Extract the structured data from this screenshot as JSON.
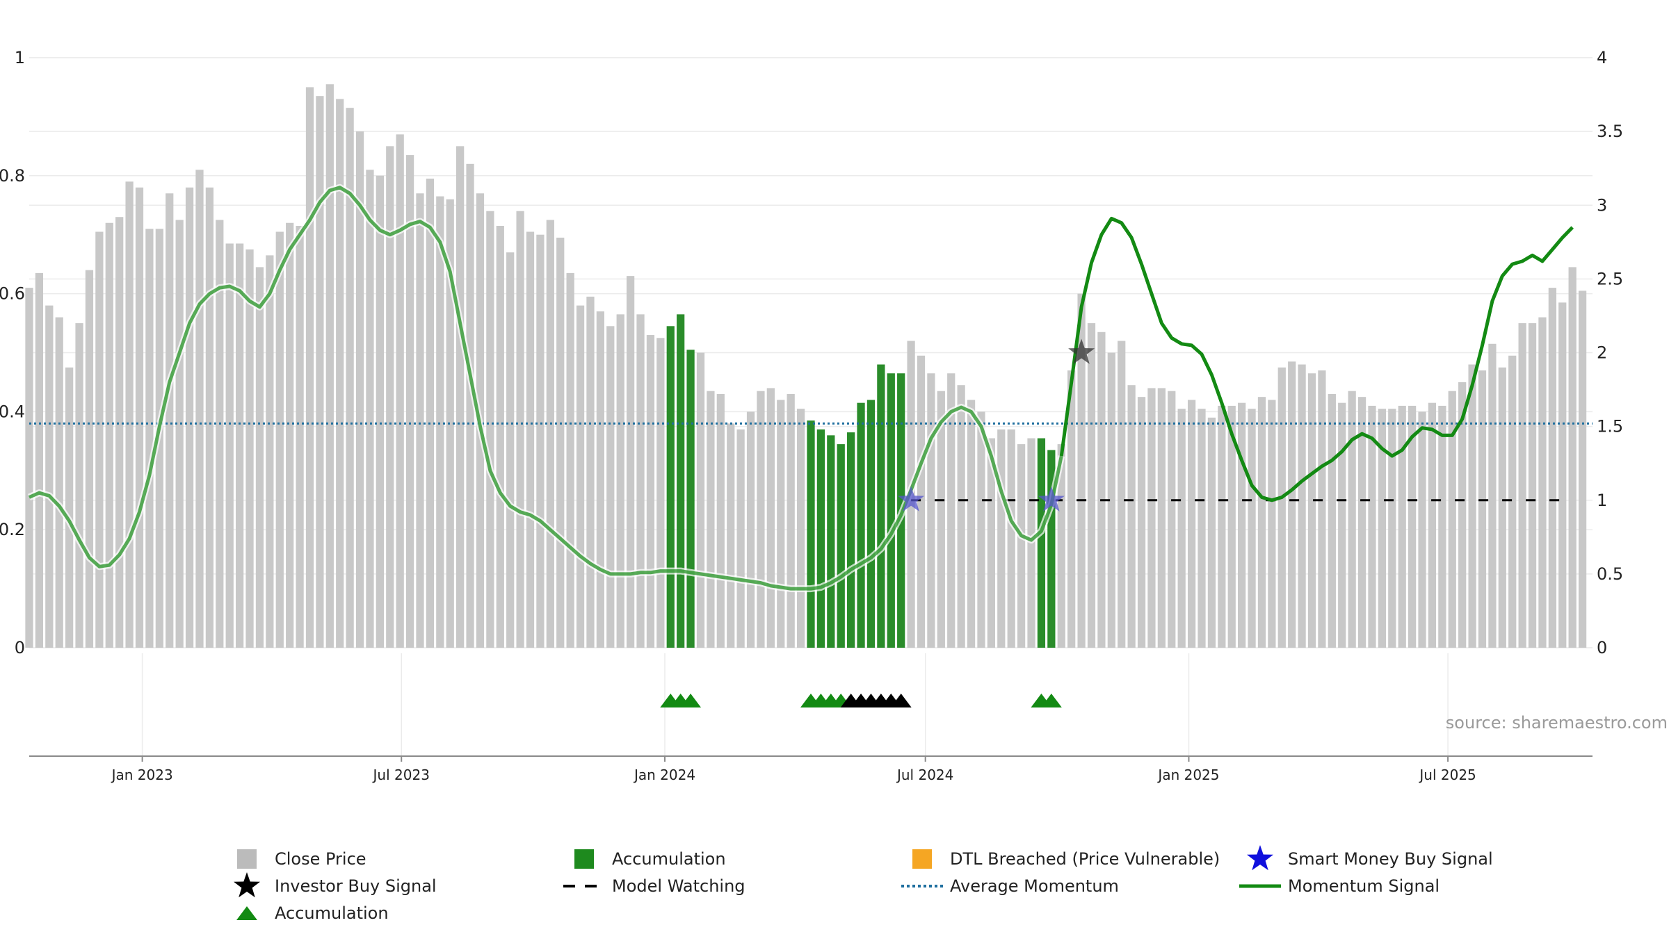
{
  "chart_data": {
    "type": "bar",
    "source_text": "source: sharemaestro.com",
    "x_axis": {
      "ticks": [
        {
          "date": "2023-01-01",
          "label": "Jan 2023"
        },
        {
          "date": "2023-07-01",
          "label": "Jul 2023"
        },
        {
          "date": "2024-01-01",
          "label": "Jan 2024"
        },
        {
          "date": "2024-07-01",
          "label": "Jul 2024"
        },
        {
          "date": "2025-01-01",
          "label": "Jan 2025"
        },
        {
          "date": "2025-07-01",
          "label": "Jul 2025"
        }
      ],
      "range": [
        "2022-10-14",
        "2025-10-10"
      ]
    },
    "y_left": {
      "range": [
        0,
        1
      ],
      "ticks": [
        0,
        0.2,
        0.4,
        0.6,
        0.8,
        1
      ],
      "tick_labels": [
        "0",
        "0.2",
        "0.4",
        "0.6",
        "0.8",
        "1"
      ]
    },
    "y_right": {
      "range": [
        0,
        4
      ],
      "ticks": [
        0,
        0.5,
        1,
        1.5,
        2,
        2.5,
        3,
        3.5,
        4
      ],
      "tick_labels": [
        "0",
        "0.5",
        "1",
        "1.5",
        "2",
        "2.5",
        "3",
        "3.5",
        "4"
      ]
    },
    "grid": true,
    "legend": {
      "placement": "bottom",
      "items": [
        {
          "label": "Close Price",
          "symbol": "square",
          "color": "#bbbbbb"
        },
        {
          "label": "Accumulation",
          "symbol": "square",
          "color": "#1e8a1e"
        },
        {
          "label": "DTL Breached (Price Vulnerable)",
          "symbol": "square",
          "color": "#f5a623"
        },
        {
          "label": "Smart Money Buy Signal",
          "symbol": "star",
          "color": "#1010dd"
        },
        {
          "label": "Investor Buy Signal",
          "symbol": "star",
          "color": "#000000"
        },
        {
          "label": "Model Watching",
          "symbol": "dash",
          "color": "#000000"
        },
        {
          "label": "Average Momentum",
          "symbol": "dotted",
          "color": "#1f6f9f"
        },
        {
          "label": "Momentum Signal",
          "symbol": "line",
          "color": "#138a13"
        },
        {
          "label": "Accumulation",
          "symbol": "triangle",
          "color": "#138a13"
        }
      ]
    },
    "colors": {
      "close_price": "#c8c8c8",
      "accumulation": "#2a8c2a",
      "momentum": "#138a13",
      "average_momentum": "#1f6f9f",
      "smart_money": "#5555cc",
      "investor": "#333333",
      "triangle_green": "#138a13",
      "triangle_black": "#000000"
    },
    "series": [
      {
        "name": "Close Price",
        "axis": "left",
        "start_date": "2022-10-14",
        "interval_days": 7,
        "values": [
          0.61,
          0.635,
          0.58,
          0.56,
          0.475,
          0.55,
          0.64,
          0.705,
          0.72,
          0.73,
          0.79,
          0.78,
          0.71,
          0.71,
          0.77,
          0.725,
          0.78,
          0.81,
          0.78,
          0.725,
          0.685,
          0.685,
          0.675,
          0.645,
          0.665,
          0.705,
          0.72,
          0.715,
          0.95,
          0.935,
          0.955,
          0.93,
          0.915,
          0.875,
          0.81,
          0.8,
          0.85,
          0.87,
          0.835,
          0.77,
          0.795,
          0.765,
          0.76,
          0.85,
          0.82,
          0.77,
          0.74,
          0.715,
          0.67,
          0.74,
          0.705,
          0.7,
          0.725,
          0.695,
          0.635,
          0.58,
          0.595,
          0.57,
          0.545,
          0.565,
          0.63,
          0.565,
          0.53,
          0.525,
          0.545,
          0.565,
          0.505,
          0.5,
          0.435,
          0.43,
          0.38,
          0.37,
          0.4,
          0.435,
          0.44,
          0.42,
          0.43,
          0.405,
          0.385,
          0.37,
          0.36,
          0.345,
          0.365,
          0.415,
          0.42,
          0.48,
          0.465,
          0.465,
          0.52,
          0.495,
          0.465,
          0.435,
          0.465,
          0.445,
          0.42,
          0.4,
          0.355,
          0.37,
          0.37,
          0.345,
          0.355,
          0.355,
          0.335,
          0.345,
          0.47,
          0.6,
          0.55,
          0.535,
          0.5,
          0.52,
          0.445,
          0.425,
          0.44,
          0.44,
          0.435,
          0.405,
          0.42,
          0.405,
          0.39,
          0.41,
          0.41,
          0.415,
          0.405,
          0.425,
          0.42,
          0.475,
          0.485,
          0.48,
          0.465,
          0.47,
          0.43,
          0.415,
          0.435,
          0.425,
          0.41,
          0.405,
          0.405,
          0.41,
          0.41,
          0.4,
          0.415,
          0.41,
          0.435,
          0.45,
          0.48,
          0.47,
          0.515,
          0.475,
          0.495,
          0.55,
          0.55,
          0.56,
          0.61,
          0.585,
          0.645,
          0.605
        ]
      },
      {
        "name": "Momentum Signal",
        "axis": "right",
        "points": [
          [
            "2022-10-14",
            1.02
          ],
          [
            "2022-10-21",
            1.05
          ],
          [
            "2022-10-28",
            1.03
          ],
          [
            "2022-11-04",
            0.96
          ],
          [
            "2022-11-11",
            0.86
          ],
          [
            "2022-11-18",
            0.73
          ],
          [
            "2022-11-25",
            0.61
          ],
          [
            "2022-12-02",
            0.55
          ],
          [
            "2022-12-09",
            0.56
          ],
          [
            "2022-12-16",
            0.63
          ],
          [
            "2022-12-23",
            0.74
          ],
          [
            "2022-12-30",
            0.92
          ],
          [
            "2023-01-06",
            1.17
          ],
          [
            "2023-01-13",
            1.5
          ],
          [
            "2023-01-20",
            1.8
          ],
          [
            "2023-01-27",
            2.0
          ],
          [
            "2023-02-03",
            2.2
          ],
          [
            "2023-02-10",
            2.33
          ],
          [
            "2023-02-17",
            2.4
          ],
          [
            "2023-02-24",
            2.44
          ],
          [
            "2023-03-03",
            2.45
          ],
          [
            "2023-03-10",
            2.42
          ],
          [
            "2023-03-17",
            2.35
          ],
          [
            "2023-03-24",
            2.31
          ],
          [
            "2023-03-31",
            2.4
          ],
          [
            "2023-04-07",
            2.56
          ],
          [
            "2023-04-14",
            2.7
          ],
          [
            "2023-04-21",
            2.8
          ],
          [
            "2023-04-28",
            2.9
          ],
          [
            "2023-05-05",
            3.02
          ],
          [
            "2023-05-12",
            3.1
          ],
          [
            "2023-05-19",
            3.12
          ],
          [
            "2023-05-26",
            3.08
          ],
          [
            "2023-06-02",
            3.0
          ],
          [
            "2023-06-09",
            2.9
          ],
          [
            "2023-06-16",
            2.83
          ],
          [
            "2023-06-23",
            2.8
          ],
          [
            "2023-06-30",
            2.83
          ],
          [
            "2023-07-07",
            2.87
          ],
          [
            "2023-07-14",
            2.89
          ],
          [
            "2023-07-21",
            2.85
          ],
          [
            "2023-07-28",
            2.75
          ],
          [
            "2023-08-04",
            2.55
          ],
          [
            "2023-08-11",
            2.2
          ],
          [
            "2023-08-18",
            1.85
          ],
          [
            "2023-08-25",
            1.5
          ],
          [
            "2023-09-01",
            1.2
          ],
          [
            "2023-09-08",
            1.05
          ],
          [
            "2023-09-15",
            0.96
          ],
          [
            "2023-09-22",
            0.92
          ],
          [
            "2023-09-29",
            0.9
          ],
          [
            "2023-10-06",
            0.86
          ],
          [
            "2023-10-13",
            0.8
          ],
          [
            "2023-10-20",
            0.74
          ],
          [
            "2023-10-27",
            0.68
          ],
          [
            "2023-11-03",
            0.62
          ],
          [
            "2023-11-10",
            0.57
          ],
          [
            "2023-11-17",
            0.53
          ],
          [
            "2023-11-24",
            0.5
          ],
          [
            "2023-12-01",
            0.5
          ],
          [
            "2023-12-08",
            0.5
          ],
          [
            "2023-12-15",
            0.51
          ],
          [
            "2023-12-22",
            0.51
          ],
          [
            "2023-12-29",
            0.52
          ],
          [
            "2024-01-05",
            0.52
          ],
          [
            "2024-01-12",
            0.52
          ],
          [
            "2024-01-19",
            0.51
          ],
          [
            "2024-01-26",
            0.5
          ],
          [
            "2024-02-02",
            0.49
          ],
          [
            "2024-02-09",
            0.48
          ],
          [
            "2024-02-16",
            0.47
          ],
          [
            "2024-02-23",
            0.46
          ],
          [
            "2024-03-01",
            0.45
          ],
          [
            "2024-03-08",
            0.44
          ],
          [
            "2024-03-15",
            0.42
          ],
          [
            "2024-03-22",
            0.41
          ],
          [
            "2024-03-29",
            0.4
          ],
          [
            "2024-04-05",
            0.4
          ],
          [
            "2024-04-12",
            0.4
          ],
          [
            "2024-04-19",
            0.41
          ],
          [
            "2024-04-26",
            0.44
          ],
          [
            "2024-05-03",
            0.48
          ],
          [
            "2024-05-10",
            0.53
          ],
          [
            "2024-05-17",
            0.57
          ],
          [
            "2024-05-24",
            0.61
          ],
          [
            "2024-05-31",
            0.67
          ],
          [
            "2024-06-07",
            0.77
          ],
          [
            "2024-06-14",
            0.9
          ],
          [
            "2024-06-21",
            1.07
          ],
          [
            "2024-06-28",
            1.25
          ],
          [
            "2024-07-05",
            1.42
          ],
          [
            "2024-07-12",
            1.53
          ],
          [
            "2024-07-19",
            1.6
          ],
          [
            "2024-07-26",
            1.63
          ],
          [
            "2024-08-02",
            1.6
          ],
          [
            "2024-08-09",
            1.5
          ],
          [
            "2024-08-16",
            1.3
          ],
          [
            "2024-08-23",
            1.06
          ],
          [
            "2024-08-30",
            0.86
          ],
          [
            "2024-09-06",
            0.76
          ],
          [
            "2024-09-13",
            0.73
          ],
          [
            "2024-09-20",
            0.79
          ],
          [
            "2024-09-27",
            0.97
          ],
          [
            "2024-10-04",
            1.3
          ],
          [
            "2024-10-11",
            1.8
          ],
          [
            "2024-10-18",
            2.31
          ],
          [
            "2024-10-25",
            2.61
          ],
          [
            "2024-11-01",
            2.8
          ],
          [
            "2024-11-08",
            2.91
          ],
          [
            "2024-11-15",
            2.88
          ],
          [
            "2024-11-22",
            2.78
          ],
          [
            "2024-11-29",
            2.6
          ],
          [
            "2024-12-06",
            2.4
          ],
          [
            "2024-12-13",
            2.2
          ],
          [
            "2024-12-20",
            2.1
          ],
          [
            "2024-12-27",
            2.06
          ],
          [
            "2025-01-03",
            2.05
          ],
          [
            "2025-01-10",
            1.99
          ],
          [
            "2025-01-17",
            1.85
          ],
          [
            "2025-01-24",
            1.66
          ],
          [
            "2025-01-31",
            1.45
          ],
          [
            "2025-02-07",
            1.27
          ],
          [
            "2025-02-14",
            1.1
          ],
          [
            "2025-02-21",
            1.02
          ],
          [
            "2025-02-28",
            1.0
          ],
          [
            "2025-03-07",
            1.02
          ],
          [
            "2025-03-14",
            1.07
          ],
          [
            "2025-03-21",
            1.13
          ],
          [
            "2025-03-28",
            1.18
          ],
          [
            "2025-04-04",
            1.23
          ],
          [
            "2025-04-11",
            1.27
          ],
          [
            "2025-04-18",
            1.33
          ],
          [
            "2025-04-25",
            1.41
          ],
          [
            "2025-05-02",
            1.45
          ],
          [
            "2025-05-09",
            1.42
          ],
          [
            "2025-05-16",
            1.35
          ],
          [
            "2025-05-23",
            1.3
          ],
          [
            "2025-05-30",
            1.34
          ],
          [
            "2025-06-06",
            1.43
          ],
          [
            "2025-06-13",
            1.49
          ],
          [
            "2025-06-20",
            1.48
          ],
          [
            "2025-06-27",
            1.44
          ],
          [
            "2025-07-04",
            1.44
          ],
          [
            "2025-07-11",
            1.55
          ],
          [
            "2025-07-18",
            1.78
          ],
          [
            "2025-07-25",
            2.05
          ],
          [
            "2025-08-01",
            2.35
          ],
          [
            "2025-08-08",
            2.52
          ],
          [
            "2025-08-15",
            2.6
          ],
          [
            "2025-08-22",
            2.62
          ],
          [
            "2025-08-29",
            2.66
          ],
          [
            "2025-09-05",
            2.62
          ],
          [
            "2025-09-12",
            2.7
          ],
          [
            "2025-09-19",
            2.78
          ],
          [
            "2025-09-26",
            2.85
          ]
        ],
        "bold_from": "2024-10-04"
      },
      {
        "name": "Average Momentum",
        "axis": "right",
        "value": 1.52
      },
      {
        "name": "Model Watching",
        "axis": "right",
        "value": 1.0,
        "from": "2024-06-21",
        "to": "2025-09-26"
      }
    ],
    "accumulation_bars": [
      "2024-01-05",
      "2024-01-12",
      "2024-01-19",
      "2024-04-12",
      "2024-04-19",
      "2024-04-26",
      "2024-05-03",
      "2024-05-10",
      "2024-05-17",
      "2024-05-24",
      "2024-05-31",
      "2024-06-07",
      "2024-06-14",
      "2024-09-20",
      "2024-09-27"
    ],
    "smart_money_buy_signals": [
      {
        "date": "2024-06-21",
        "value": 1.0
      },
      {
        "date": "2024-09-27",
        "value": 1.0
      }
    ],
    "investor_buy_signals": [
      {
        "date": "2024-10-18",
        "value": 2.0
      }
    ],
    "accumulation_triangles": [
      {
        "date": "2024-01-05",
        "color": "green"
      },
      {
        "date": "2024-01-12",
        "color": "green"
      },
      {
        "date": "2024-01-19",
        "color": "green"
      },
      {
        "date": "2024-04-12",
        "color": "green"
      },
      {
        "date": "2024-04-19",
        "color": "green"
      },
      {
        "date": "2024-04-26",
        "color": "green"
      },
      {
        "date": "2024-05-03",
        "color": "green"
      },
      {
        "date": "2024-05-10",
        "color": "black"
      },
      {
        "date": "2024-05-17",
        "color": "black"
      },
      {
        "date": "2024-05-24",
        "color": "black"
      },
      {
        "date": "2024-05-31",
        "color": "black"
      },
      {
        "date": "2024-06-07",
        "color": "black"
      },
      {
        "date": "2024-06-14",
        "color": "black"
      },
      {
        "date": "2024-09-20",
        "color": "green"
      },
      {
        "date": "2024-09-27",
        "color": "green"
      }
    ]
  }
}
